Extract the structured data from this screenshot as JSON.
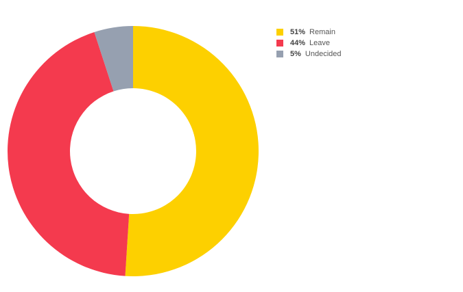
{
  "chart_data": {
    "type": "pie",
    "variant": "donut",
    "slices": [
      {
        "label": "Remain",
        "value": 51,
        "display": "51%",
        "color": "#FDD000"
      },
      {
        "label": "Leave",
        "value": 44,
        "display": "44%",
        "color": "#F43A4E"
      },
      {
        "label": "Undecided",
        "value": 5,
        "display": "5%",
        "color": "#96A0B0"
      }
    ],
    "legend_position": "top-right"
  }
}
